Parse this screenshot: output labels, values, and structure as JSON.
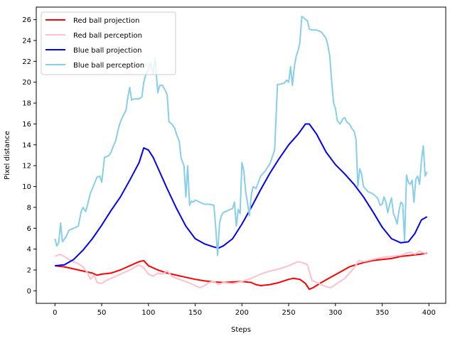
{
  "chart_data": {
    "type": "line",
    "title": "",
    "xlabel": "Steps",
    "ylabel": "Pixel distance",
    "xlim": [
      -20,
      418
    ],
    "ylim": [
      -1.2,
      27.2
    ],
    "xticks": [
      0,
      50,
      100,
      150,
      200,
      250,
      300,
      350,
      400
    ],
    "yticks": [
      0,
      2,
      4,
      6,
      8,
      10,
      12,
      14,
      16,
      18,
      20,
      22,
      24,
      26
    ],
    "grid": false,
    "legend_position": "upper-left",
    "series": [
      {
        "name": "Red ball projection",
        "color": "#ff0000",
        "points": [
          [
            0,
            2.4
          ],
          [
            10,
            2.3
          ],
          [
            20,
            2.1
          ],
          [
            30,
            1.9
          ],
          [
            40,
            1.7
          ],
          [
            45,
            1.5
          ],
          [
            50,
            1.6
          ],
          [
            60,
            1.7
          ],
          [
            70,
            2.0
          ],
          [
            80,
            2.4
          ],
          [
            90,
            2.8
          ],
          [
            95,
            2.9
          ],
          [
            100,
            2.4
          ],
          [
            110,
            2.0
          ],
          [
            120,
            1.7
          ],
          [
            130,
            1.5
          ],
          [
            140,
            1.3
          ],
          [
            150,
            1.1
          ],
          [
            160,
            0.95
          ],
          [
            170,
            0.85
          ],
          [
            180,
            0.8
          ],
          [
            190,
            0.85
          ],
          [
            200,
            0.9
          ],
          [
            210,
            0.8
          ],
          [
            215,
            0.6
          ],
          [
            220,
            0.5
          ],
          [
            230,
            0.6
          ],
          [
            240,
            0.8
          ],
          [
            250,
            1.1
          ],
          [
            255,
            1.2
          ],
          [
            262,
            1.1
          ],
          [
            268,
            0.7
          ],
          [
            272,
            0.15
          ],
          [
            276,
            0.3
          ],
          [
            285,
            0.8
          ],
          [
            295,
            1.3
          ],
          [
            305,
            1.8
          ],
          [
            315,
            2.3
          ],
          [
            322,
            2.5
          ],
          [
            330,
            2.7
          ],
          [
            340,
            2.9
          ],
          [
            350,
            3.0
          ],
          [
            360,
            3.1
          ],
          [
            370,
            3.3
          ],
          [
            380,
            3.4
          ],
          [
            390,
            3.5
          ],
          [
            398,
            3.6
          ]
        ]
      },
      {
        "name": "Red ball perception",
        "color": "#ffc0cb",
        "points": [
          [
            0,
            3.3
          ],
          [
            5,
            3.5
          ],
          [
            10,
            3.3
          ],
          [
            15,
            3.0
          ],
          [
            20,
            2.8
          ],
          [
            25,
            2.6
          ],
          [
            30,
            2.3
          ],
          [
            35,
            1.7
          ],
          [
            38,
            1.1
          ],
          [
            42,
            1.5
          ],
          [
            45,
            0.8
          ],
          [
            50,
            0.7
          ],
          [
            55,
            1.0
          ],
          [
            60,
            1.2
          ],
          [
            70,
            1.6
          ],
          [
            80,
            2.0
          ],
          [
            90,
            2.5
          ],
          [
            95,
            2.2
          ],
          [
            100,
            1.6
          ],
          [
            105,
            1.4
          ],
          [
            110,
            1.7
          ],
          [
            115,
            1.6
          ],
          [
            120,
            1.9
          ],
          [
            125,
            1.4
          ],
          [
            130,
            1.2
          ],
          [
            140,
            0.9
          ],
          [
            150,
            0.5
          ],
          [
            155,
            0.3
          ],
          [
            160,
            0.5
          ],
          [
            165,
            0.8
          ],
          [
            170,
            0.9
          ],
          [
            175,
            0.6
          ],
          [
            180,
            0.8
          ],
          [
            190,
            0.7
          ],
          [
            200,
            0.9
          ],
          [
            210,
            1.2
          ],
          [
            220,
            1.6
          ],
          [
            230,
            1.9
          ],
          [
            240,
            2.1
          ],
          [
            250,
            2.4
          ],
          [
            255,
            2.6
          ],
          [
            260,
            2.8
          ],
          [
            265,
            2.7
          ],
          [
            270,
            2.5
          ],
          [
            275,
            1.0
          ],
          [
            280,
            0.8
          ],
          [
            285,
            0.6
          ],
          [
            290,
            0.4
          ],
          [
            295,
            0.3
          ],
          [
            300,
            0.6
          ],
          [
            310,
            1.2
          ],
          [
            320,
            2.2
          ],
          [
            325,
            2.9
          ],
          [
            330,
            2.8
          ],
          [
            340,
            3.0
          ],
          [
            350,
            3.2
          ],
          [
            360,
            3.3
          ],
          [
            370,
            3.4
          ],
          [
            375,
            3.6
          ],
          [
            380,
            3.7
          ],
          [
            385,
            3.5
          ],
          [
            390,
            3.8
          ],
          [
            398,
            3.5
          ]
        ]
      },
      {
        "name": "Blue ball projection",
        "color": "#0000ff",
        "points": [
          [
            0,
            2.4
          ],
          [
            10,
            2.5
          ],
          [
            20,
            3.0
          ],
          [
            30,
            3.9
          ],
          [
            40,
            5.0
          ],
          [
            50,
            6.3
          ],
          [
            60,
            7.7
          ],
          [
            70,
            9.0
          ],
          [
            80,
            10.6
          ],
          [
            90,
            12.3
          ],
          [
            95,
            13.7
          ],
          [
            100,
            13.5
          ],
          [
            105,
            12.8
          ],
          [
            110,
            11.8
          ],
          [
            120,
            9.8
          ],
          [
            130,
            7.9
          ],
          [
            140,
            6.2
          ],
          [
            150,
            5.0
          ],
          [
            160,
            4.5
          ],
          [
            170,
            4.2
          ],
          [
            175,
            4.1
          ],
          [
            180,
            4.3
          ],
          [
            190,
            5.0
          ],
          [
            200,
            6.4
          ],
          [
            210,
            8.0
          ],
          [
            220,
            9.7
          ],
          [
            230,
            11.3
          ],
          [
            240,
            12.7
          ],
          [
            250,
            14.0
          ],
          [
            260,
            15.0
          ],
          [
            268,
            16.0
          ],
          [
            272,
            16.0
          ],
          [
            280,
            15.0
          ],
          [
            290,
            13.3
          ],
          [
            300,
            12.1
          ],
          [
            310,
            11.2
          ],
          [
            320,
            10.2
          ],
          [
            330,
            9.0
          ],
          [
            340,
            7.6
          ],
          [
            350,
            6.1
          ],
          [
            360,
            5.0
          ],
          [
            370,
            4.6
          ],
          [
            378,
            4.7
          ],
          [
            385,
            5.5
          ],
          [
            392,
            6.8
          ],
          [
            398,
            7.1
          ]
        ]
      },
      {
        "name": "Blue ball perception",
        "color": "#87ceeb",
        "points": [
          [
            0,
            5.0
          ],
          [
            2,
            4.3
          ],
          [
            4,
            4.6
          ],
          [
            6,
            6.5
          ],
          [
            8,
            4.7
          ],
          [
            12,
            5.2
          ],
          [
            15,
            5.8
          ],
          [
            20,
            6.0
          ],
          [
            25,
            6.2
          ],
          [
            28,
            7.6
          ],
          [
            30,
            8.0
          ],
          [
            33,
            7.6
          ],
          [
            35,
            8.3
          ],
          [
            38,
            9.4
          ],
          [
            40,
            9.8
          ],
          [
            45,
            10.9
          ],
          [
            48,
            11.0
          ],
          [
            50,
            10.4
          ],
          [
            53,
            12.8
          ],
          [
            56,
            12.9
          ],
          [
            58,
            13.0
          ],
          [
            60,
            13.3
          ],
          [
            63,
            14.0
          ],
          [
            65,
            14.4
          ],
          [
            68,
            15.6
          ],
          [
            70,
            16.2
          ],
          [
            73,
            16.8
          ],
          [
            76,
            17.3
          ],
          [
            78,
            18.6
          ],
          [
            80,
            19.5
          ],
          [
            82,
            18.3
          ],
          [
            85,
            18.4
          ],
          [
            90,
            18.4
          ],
          [
            93,
            18.6
          ],
          [
            95,
            20.0
          ],
          [
            98,
            21.0
          ],
          [
            100,
            21.1
          ],
          [
            102,
            21.9
          ],
          [
            105,
            20.8
          ],
          [
            107,
            22.3
          ],
          [
            110,
            19.0
          ],
          [
            112,
            19.7
          ],
          [
            115,
            19.7
          ],
          [
            118,
            19.2
          ],
          [
            120,
            18.8
          ],
          [
            122,
            16.2
          ],
          [
            125,
            16.0
          ],
          [
            128,
            15.6
          ],
          [
            130,
            15.0
          ],
          [
            133,
            14.3
          ],
          [
            135,
            12.7
          ],
          [
            138,
            12.0
          ],
          [
            140,
            9.0
          ],
          [
            142,
            12.0
          ],
          [
            144,
            8.2
          ],
          [
            146,
            8.6
          ],
          [
            148,
            8.5
          ],
          [
            150,
            8.7
          ],
          [
            155,
            8.5
          ],
          [
            160,
            8.3
          ],
          [
            165,
            8.3
          ],
          [
            170,
            8.2
          ],
          [
            172,
            6.0
          ],
          [
            174,
            3.4
          ],
          [
            176,
            6.5
          ],
          [
            178,
            7.2
          ],
          [
            180,
            7.5
          ],
          [
            185,
            7.7
          ],
          [
            190,
            7.9
          ],
          [
            192,
            8.5
          ],
          [
            194,
            6.2
          ],
          [
            196,
            7.8
          ],
          [
            198,
            7.4
          ],
          [
            200,
            12.3
          ],
          [
            202,
            11.5
          ],
          [
            204,
            9.5
          ],
          [
            206,
            8.4
          ],
          [
            208,
            7.2
          ],
          [
            210,
            9.2
          ],
          [
            212,
            10.0
          ],
          [
            215,
            9.8
          ],
          [
            218,
            10.5
          ],
          [
            220,
            11.0
          ],
          [
            225,
            11.5
          ],
          [
            230,
            12.2
          ],
          [
            235,
            13.5
          ],
          [
            238,
            19.8
          ],
          [
            240,
            19.8
          ],
          [
            245,
            19.9
          ],
          [
            248,
            20.2
          ],
          [
            250,
            20.0
          ],
          [
            252,
            21.5
          ],
          [
            254,
            19.7
          ],
          [
            256,
            21.5
          ],
          [
            258,
            22.5
          ],
          [
            260,
            23.0
          ],
          [
            262,
            23.8
          ],
          [
            264,
            26.3
          ],
          [
            266,
            26.2
          ],
          [
            268,
            26.0
          ],
          [
            270,
            25.9
          ],
          [
            272,
            25.1
          ],
          [
            275,
            25.0
          ],
          [
            280,
            25.0
          ],
          [
            285,
            24.8
          ],
          [
            290,
            24.2
          ],
          [
            292,
            23.5
          ],
          [
            294,
            22.5
          ],
          [
            296,
            20.0
          ],
          [
            298,
            18.0
          ],
          [
            300,
            17.5
          ],
          [
            302,
            16.3
          ],
          [
            305,
            16.0
          ],
          [
            308,
            16.5
          ],
          [
            310,
            16.6
          ],
          [
            312,
            16.2
          ],
          [
            315,
            16.0
          ],
          [
            318,
            15.5
          ],
          [
            320,
            15.3
          ],
          [
            322,
            14.5
          ],
          [
            324,
            10.0
          ],
          [
            326,
            11.7
          ],
          [
            328,
            11.2
          ],
          [
            330,
            10.0
          ],
          [
            335,
            9.5
          ],
          [
            340,
            9.3
          ],
          [
            345,
            8.9
          ],
          [
            348,
            8.2
          ],
          [
            350,
            8.3
          ],
          [
            352,
            9.0
          ],
          [
            354,
            8.5
          ],
          [
            356,
            7.5
          ],
          [
            358,
            8.3
          ],
          [
            360,
            8.9
          ],
          [
            362,
            7.4
          ],
          [
            364,
            7.0
          ],
          [
            366,
            6.4
          ],
          [
            368,
            7.7
          ],
          [
            370,
            8.5
          ],
          [
            372,
            8.3
          ],
          [
            374,
            4.8
          ],
          [
            376,
            11.1
          ],
          [
            378,
            10.4
          ],
          [
            380,
            10.2
          ],
          [
            382,
            10.6
          ],
          [
            384,
            8.5
          ],
          [
            386,
            10.7
          ],
          [
            388,
            11.0
          ],
          [
            390,
            10.2
          ],
          [
            392,
            12.5
          ],
          [
            394,
            13.9
          ],
          [
            396,
            11.0
          ],
          [
            398,
            11.4
          ]
        ]
      }
    ]
  }
}
